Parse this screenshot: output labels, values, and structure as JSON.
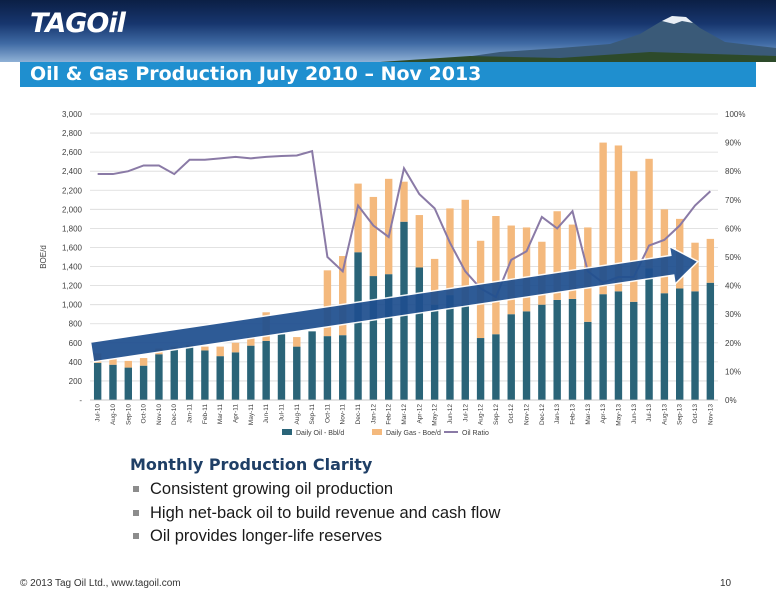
{
  "header": {
    "logo_text": "TAGOil",
    "title": "Oil & Gas Production July 2010 – Nov 2013"
  },
  "colors": {
    "oil": "#2a6478",
    "gas": "#f4b97d",
    "ratio": "#8a7aa6",
    "arrow": "#1f4f8f",
    "title_bar": "#1f8fcf"
  },
  "chart_data": {
    "type": "bar",
    "stacked": true,
    "categories": [
      "Jul-10",
      "Aug-10",
      "Sep-10",
      "Oct-10",
      "Nov-10",
      "Dec-10",
      "Jan-11",
      "Feb-11",
      "Mar-11",
      "Apr-11",
      "May-11",
      "Jun-11",
      "Jul-11",
      "Aug-11",
      "Sep-11",
      "Oct-11",
      "Nov-11",
      "Dec-11",
      "Jan-12",
      "Feb-12",
      "Mar-12",
      "Apr-12",
      "May-12",
      "Jun-12",
      "Jul-12",
      "Aug-12",
      "Sep-12",
      "Oct-12",
      "Nov-12",
      "Dec-12",
      "Jan-13",
      "Feb-13",
      "Mar-13",
      "Apr-13",
      "May-13",
      "Jun-13",
      "Jul-13",
      "Aug-13",
      "Sep-13",
      "Oct-13",
      "Nov-13"
    ],
    "series": [
      {
        "name": "Daily Oil - Bbl/d",
        "kind": "bar",
        "axis": "left",
        "values": [
          390,
          370,
          340,
          360,
          480,
          530,
          560,
          520,
          460,
          500,
          570,
          620,
          690,
          560,
          720,
          670,
          680,
          1550,
          1300,
          1320,
          1870,
          1390,
          1000,
          1100,
          1000,
          650,
          690,
          900,
          930,
          1000,
          1050,
          1060,
          820,
          1110,
          1140,
          1030,
          1380,
          1120,
          1170,
          1140,
          1230
        ]
      },
      {
        "name": "Daily Gas - Boe/d",
        "kind": "bar",
        "axis": "left",
        "values": [
          100,
          60,
          70,
          80,
          60,
          30,
          20,
          40,
          100,
          100,
          90,
          300,
          0,
          100,
          0,
          690,
          830,
          720,
          830,
          1000,
          420,
          550,
          480,
          910,
          1100,
          1020,
          1240,
          930,
          880,
          660,
          930,
          780,
          990,
          1590,
          1530,
          1370,
          1150,
          880,
          730,
          510,
          460
        ]
      },
      {
        "name": "Oil Ratio",
        "kind": "line",
        "axis": "right",
        "values": [
          0.79,
          0.79,
          0.8,
          0.82,
          0.82,
          0.79,
          0.84,
          0.84,
          0.845,
          0.85,
          0.845,
          0.85,
          0.853,
          0.855,
          0.87,
          0.5,
          0.45,
          0.68,
          0.61,
          0.57,
          0.81,
          0.72,
          0.67,
          0.55,
          0.45,
          0.39,
          0.36,
          0.49,
          0.52,
          0.64,
          0.6,
          0.66,
          0.45,
          0.41,
          0.43,
          0.43,
          0.54,
          0.56,
          0.61,
          0.68,
          0.73
        ]
      }
    ],
    "y_left": {
      "min": 0,
      "max": 3000,
      "ticks": [
        "-",
        "200",
        "400",
        "600",
        "800",
        "1,000",
        "1,200",
        "1,400",
        "1,600",
        "1,800",
        "2,000",
        "2,200",
        "2,400",
        "2,600",
        "2,800",
        "3,000"
      ]
    },
    "y_right": {
      "min": 0,
      "max": 1,
      "ticks": [
        "0%",
        "10%",
        "20%",
        "30%",
        "40%",
        "50%",
        "60%",
        "70%",
        "80%",
        "90%",
        "100%"
      ]
    },
    "ylabel": "BOE/d",
    "legend": [
      "Daily Oil - Bbl/d",
      "Daily Gas - Boe/d",
      "Oil Ratio"
    ],
    "legend_position": "bottom",
    "grid": true,
    "trend_arrow": true
  },
  "body": {
    "heading": "Monthly Production Clarity",
    "bullets": [
      "Consistent growing oil production",
      "High net-back oil to build revenue and cash flow",
      "Oil provides longer-life reserves"
    ]
  },
  "footer": {
    "copyright": "© 2013 Tag Oil Ltd., www.tagoil.com",
    "page_number": "10"
  }
}
